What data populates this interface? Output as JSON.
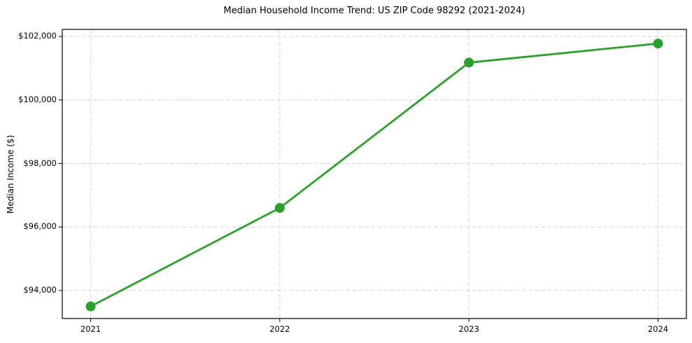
{
  "title": "Median Household Income Trend: US ZIP Code 98292 (2021-2024)",
  "chart_data": {
    "type": "line",
    "title": "Median Household Income Trend: US ZIP Code 98292 (2021-2024)",
    "xlabel": "",
    "ylabel": "Median Income ($)",
    "x": [
      2021,
      2022,
      2023,
      2024
    ],
    "x_tick_labels": [
      "2021",
      "2022",
      "2023",
      "2024"
    ],
    "series": [
      {
        "name": "Median Household Income",
        "values": [
          93500,
          96600,
          101175,
          101775
        ]
      }
    ],
    "y_ticks": [
      94000,
      96000,
      98000,
      100000,
      102000
    ],
    "y_tick_labels": [
      "$94,000",
      "$96,000",
      "$98,000",
      "$100,000",
      "$102,000"
    ],
    "xlim": [
      2020.85,
      2024.15
    ],
    "ylim": [
      93120,
      102220
    ],
    "grid": true,
    "grid_style": "dashed",
    "legend": "none",
    "line_color": "#2ca02c",
    "marker": "circle",
    "marker_color": "#2ca02c",
    "grid_color": "#d6d6d6",
    "axis_color": "#000000",
    "background_color": "#ffffff"
  }
}
